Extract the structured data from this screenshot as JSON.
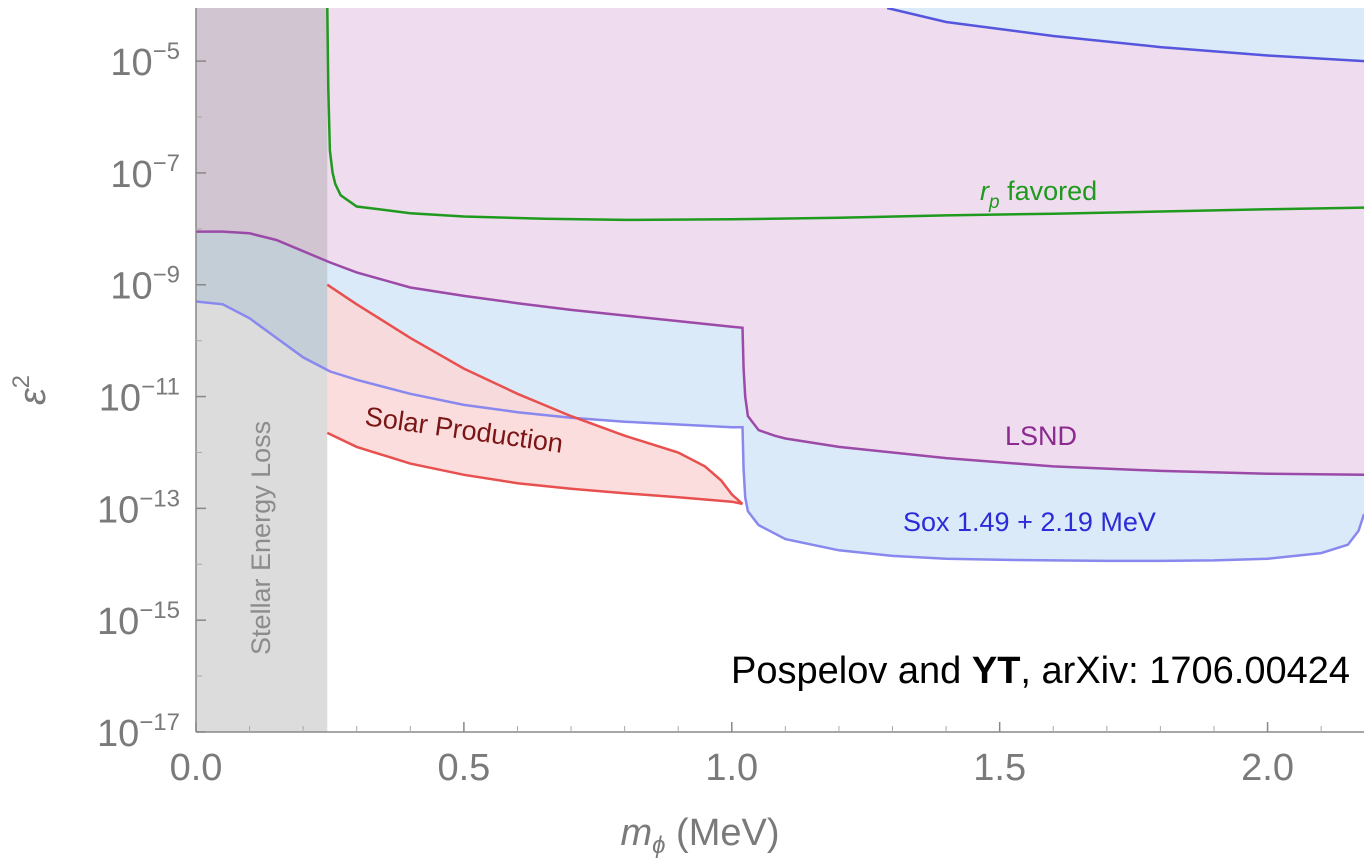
{
  "chart_data": {
    "type": "area",
    "xlabel": "m_ϕ (MeV)",
    "xlabel_main": "m",
    "xlabel_sub": "ϕ",
    "xlabel_unit": " (MeV)",
    "ylabel": "ε²",
    "ylabel_main": "ε",
    "ylabel_sup": "2",
    "xlim": [
      0.0,
      2.18
    ],
    "ylim_exp": [
      -17,
      -4.05
    ],
    "yscale": "log",
    "x_ticks": [
      {
        "value": 0.0,
        "label": "0.0"
      },
      {
        "value": 0.5,
        "label": "0.5"
      },
      {
        "value": 1.0,
        "label": "1.0"
      },
      {
        "value": 1.5,
        "label": "1.5"
      },
      {
        "value": 2.0,
        "label": "2.0"
      }
    ],
    "y_ticks": [
      {
        "exp": -5,
        "base": "10",
        "sup": "−5"
      },
      {
        "exp": -7,
        "base": "10",
        "sup": "−7"
      },
      {
        "exp": -9,
        "base": "10",
        "sup": "−9"
      },
      {
        "exp": -11,
        "base": "10",
        "sup": "−11"
      },
      {
        "exp": -13,
        "base": "10",
        "sup": "−13"
      },
      {
        "exp": -15,
        "base": "10",
        "sup": "−15"
      },
      {
        "exp": -17,
        "base": "10",
        "sup": "−17"
      }
    ],
    "grid": false,
    "series": [
      {
        "name": "Stellar Energy Loss",
        "kind": "band",
        "x_range": [
          0.0,
          0.245
        ],
        "fill": "#d9d9d9"
      },
      {
        "name": "r_p favored",
        "kind": "line",
        "color": "#1f9a1f",
        "x": [
          0.245,
          0.247,
          0.25,
          0.255,
          0.26,
          0.27,
          0.3,
          0.4,
          0.5,
          0.65,
          0.8,
          1.0,
          1.2,
          1.4,
          1.6,
          1.8,
          2.0,
          2.18
        ],
        "log10_y": [
          -4.05,
          -5.5,
          -6.6,
          -7.0,
          -7.2,
          -7.4,
          -7.6,
          -7.72,
          -7.78,
          -7.82,
          -7.84,
          -7.83,
          -7.8,
          -7.76,
          -7.73,
          -7.69,
          -7.65,
          -7.62
        ]
      },
      {
        "name": "LSND",
        "kind": "line",
        "color": "#9b4aa8",
        "fill": "#efdcee",
        "x": [
          0.0,
          0.05,
          0.1,
          0.15,
          0.2,
          0.25,
          0.3,
          0.4,
          0.5,
          0.6,
          0.7,
          0.8,
          0.9,
          1.0,
          1.02,
          1.022,
          1.025,
          1.03,
          1.05,
          1.08,
          1.1,
          1.2,
          1.4,
          1.6,
          1.8,
          2.0,
          2.18
        ],
        "log10_y": [
          -8.05,
          -8.05,
          -8.08,
          -8.2,
          -8.4,
          -8.6,
          -8.78,
          -9.05,
          -9.2,
          -9.33,
          -9.45,
          -9.55,
          -9.65,
          -9.75,
          -9.77,
          -10.5,
          -11.0,
          -11.35,
          -11.6,
          -11.7,
          -11.75,
          -11.9,
          -12.1,
          -12.25,
          -12.33,
          -12.38,
          -12.4
        ]
      },
      {
        "name": "Sox 1.49 + 2.19 MeV",
        "kind": "region",
        "color": "#8888ee",
        "fill": "#dbeaf8",
        "lower_x": [
          0.0,
          0.05,
          0.1,
          0.15,
          0.2,
          0.25,
          0.3,
          0.4,
          0.5,
          0.6,
          0.7,
          0.8,
          0.9,
          1.0,
          1.02,
          1.022,
          1.025,
          1.03,
          1.05,
          1.1,
          1.2,
          1.3,
          1.4,
          1.5,
          1.6,
          1.7,
          1.8,
          1.9,
          2.0,
          2.1,
          2.15,
          2.17,
          2.18
        ],
        "lower_log10_y": [
          -9.3,
          -9.35,
          -9.6,
          -9.95,
          -10.3,
          -10.55,
          -10.7,
          -10.95,
          -11.15,
          -11.28,
          -11.38,
          -11.45,
          -11.5,
          -11.55,
          -11.55,
          -12.3,
          -12.8,
          -13.05,
          -13.3,
          -13.55,
          -13.75,
          -13.85,
          -13.9,
          -13.92,
          -13.93,
          -13.94,
          -13.94,
          -13.93,
          -13.9,
          -13.8,
          -13.65,
          -13.4,
          -13.1
        ],
        "upper_x": [
          1.29,
          1.4,
          1.6,
          1.8,
          2.0,
          2.18
        ],
        "upper_log10_y": [
          -4.05,
          -4.3,
          -4.55,
          -4.75,
          -4.9,
          -5.0
        ]
      },
      {
        "name": "Solar Production",
        "kind": "region",
        "color": "#e8504f",
        "fill": "#fbd7d7",
        "upper_x": [
          0.245,
          0.3,
          0.4,
          0.5,
          0.6,
          0.7,
          0.8,
          0.9,
          0.95,
          0.98,
          1.0,
          1.02
        ],
        "upper_log10_y": [
          -9.0,
          -9.35,
          -9.95,
          -10.5,
          -10.95,
          -11.35,
          -11.7,
          -12.0,
          -12.25,
          -12.5,
          -12.75,
          -12.92
        ],
        "lower_x": [
          0.245,
          0.3,
          0.4,
          0.5,
          0.6,
          0.7,
          0.8,
          0.9,
          1.0,
          1.02
        ],
        "lower_log10_y": [
          -11.65,
          -11.9,
          -12.2,
          -12.4,
          -12.55,
          -12.65,
          -12.73,
          -12.8,
          -12.88,
          -12.92
        ]
      }
    ],
    "annotations": {
      "rp_label_main": "r",
      "rp_label_sub": "p",
      "rp_label_rest": " favored",
      "lsnd_label": "LSND",
      "sox_label": "Sox 1.49 + 2.19 MeV",
      "solar_label": "Solar Production",
      "stellar_label": "Stellar Energy Loss"
    },
    "colors": {
      "rp": "#1f9a1f",
      "lsnd_text": "#8b2a8f",
      "sox_text": "#2b2bd8",
      "solar_text": "#7a1616",
      "stellar_text": "#8c8c8c"
    }
  },
  "credit": {
    "prefix": "Pospelov and ",
    "bold": "YT",
    "suffix": ", arXiv: 1706.00424"
  }
}
